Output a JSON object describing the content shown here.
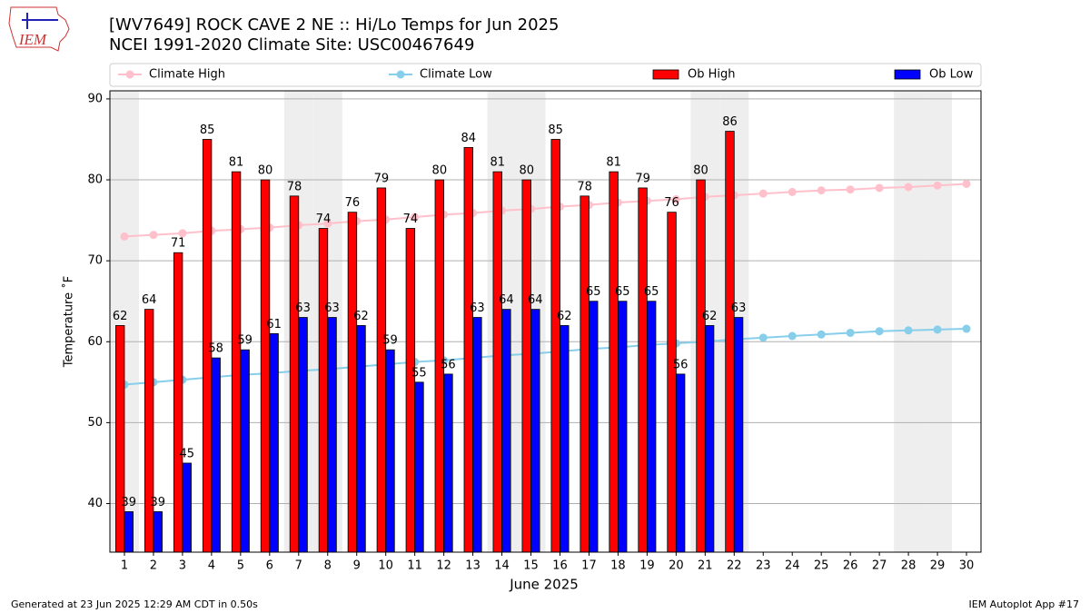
{
  "chart_data": {
    "type": "bar",
    "title": "[WV7649] ROCK CAVE 2 NE :: Hi/Lo Temps for Jun 2025",
    "subtitle": "NCEI 1991-2020 Climate Site: USC00467649",
    "logo_text": "IEM",
    "x_label": "June 2025",
    "y_label": "Temperature ˚F",
    "footer_left": "Generated at 23 Jun 2025 12:29 AM CDT in 0.50s",
    "footer_right": "IEM Autoplot App #17",
    "x": [
      1,
      2,
      3,
      4,
      5,
      6,
      7,
      8,
      9,
      10,
      11,
      12,
      13,
      14,
      15,
      16,
      17,
      18,
      19,
      20,
      21,
      22,
      23,
      24,
      25,
      26,
      27,
      28,
      29,
      30
    ],
    "xlim": [
      0.5,
      30.5
    ],
    "xticks": [
      1,
      2,
      3,
      4,
      5,
      6,
      7,
      8,
      9,
      10,
      11,
      12,
      13,
      14,
      15,
      16,
      17,
      18,
      19,
      20,
      21,
      22,
      23,
      24,
      25,
      26,
      27,
      28,
      29,
      30
    ],
    "ylim": [
      34,
      91
    ],
    "yticks": [
      40,
      50,
      60,
      70,
      80,
      90
    ],
    "grid": true,
    "shaded_x": [
      1,
      7,
      8,
      14,
      15,
      21,
      22,
      28,
      29
    ],
    "shade_color": "#eeeeee",
    "series": [
      {
        "name": "Climate High",
        "type": "line",
        "color": "#ffc0cb",
        "values": [
          73.0,
          73.2,
          73.4,
          73.7,
          73.9,
          74.1,
          74.4,
          74.6,
          74.9,
          75.1,
          75.4,
          75.7,
          75.9,
          76.2,
          76.4,
          76.7,
          76.9,
          77.2,
          77.4,
          77.6,
          77.9,
          78.1,
          78.3,
          78.5,
          78.7,
          78.8,
          79.0,
          79.1,
          79.3,
          79.5
        ]
      },
      {
        "name": "Climate Low",
        "type": "line",
        "color": "#87ceeb",
        "values": [
          54.7,
          55.0,
          55.3,
          55.6,
          55.9,
          56.1,
          56.4,
          56.6,
          56.9,
          57.2,
          57.5,
          57.7,
          58.0,
          58.3,
          58.5,
          58.8,
          59.1,
          59.3,
          59.6,
          59.8,
          60.0,
          60.3,
          60.5,
          60.7,
          60.9,
          61.1,
          61.3,
          61.4,
          61.5,
          61.6
        ]
      },
      {
        "name": "Ob High",
        "type": "bar",
        "color": "#ff0000",
        "values": [
          62,
          64,
          71,
          85,
          81,
          80,
          78,
          74,
          76,
          79,
          74,
          80,
          84,
          81,
          80,
          85,
          78,
          81,
          79,
          76,
          80,
          86,
          null,
          null,
          null,
          null,
          null,
          null,
          null,
          null
        ]
      },
      {
        "name": "Ob Low",
        "type": "bar",
        "color": "#0000ff",
        "values": [
          39,
          39,
          45,
          58,
          59,
          61,
          63,
          63,
          62,
          59,
          55,
          56,
          63,
          64,
          64,
          62,
          65,
          65,
          65,
          56,
          62,
          63,
          null,
          null,
          null,
          null,
          null,
          null,
          null,
          null
        ]
      }
    ]
  }
}
